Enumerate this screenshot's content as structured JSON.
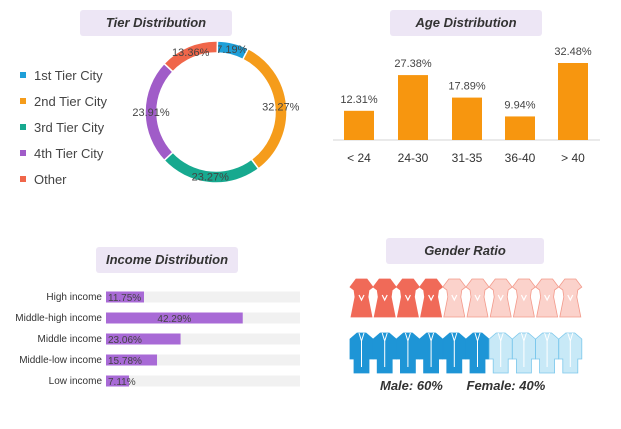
{
  "chart_data": [
    {
      "type": "pie",
      "variant": "donut",
      "title": "Tier Distribution",
      "categories": [
        "1st Tier City",
        "2nd Tier City",
        "3rd Tier City",
        "4th Tier City",
        "Other"
      ],
      "values": [
        7.19,
        32.27,
        23.27,
        23.91,
        13.36
      ],
      "labels": [
        "7.19%",
        "32.27%",
        "23.27%",
        "23.91%",
        "13.36%"
      ],
      "colors": [
        "#1e9fd8",
        "#f59c1b",
        "#17a98f",
        "#a05cc8",
        "#f0664a"
      ],
      "legend": "left"
    },
    {
      "type": "bar",
      "title": "Age Distribution",
      "categories": [
        "< 24",
        "24-30",
        "31-35",
        "36-40",
        "> 40"
      ],
      "values": [
        12.31,
        27.38,
        17.89,
        9.94,
        32.48
      ],
      "labels": [
        "12.31%",
        "27.38%",
        "17.89%",
        "9.94%",
        "32.48%"
      ],
      "color": "#f7960f",
      "ylim": [
        0,
        35
      ]
    },
    {
      "type": "bar",
      "orientation": "horizontal",
      "title": "Income Distribution",
      "categories": [
        "High income",
        "Middle-high income",
        "Middle income",
        "Middle-low income",
        "Low income"
      ],
      "values": [
        11.75,
        42.29,
        23.06,
        15.78,
        7.11
      ],
      "labels": [
        "11.75%",
        "42.29%",
        "23.06%",
        "15.78%",
        "7.11%"
      ],
      "color": "#a86ad6",
      "track_color": "#f1f1f1",
      "xlim": [
        0,
        60
      ]
    },
    {
      "type": "pictogram",
      "title": "Gender Ratio",
      "series": [
        {
          "name": "Female",
          "icon": "dress-icon",
          "count": 10,
          "filled": 4,
          "color": "#f06a58",
          "light": "#fbd2cb"
        },
        {
          "name": "Male",
          "icon": "shirt-icon",
          "count": 10,
          "filled": 6,
          "color": "#1e95d6",
          "light": "#c8e9f7"
        }
      ],
      "male_label": "Male:  60%",
      "female_label": "Female:  40%"
    }
  ]
}
